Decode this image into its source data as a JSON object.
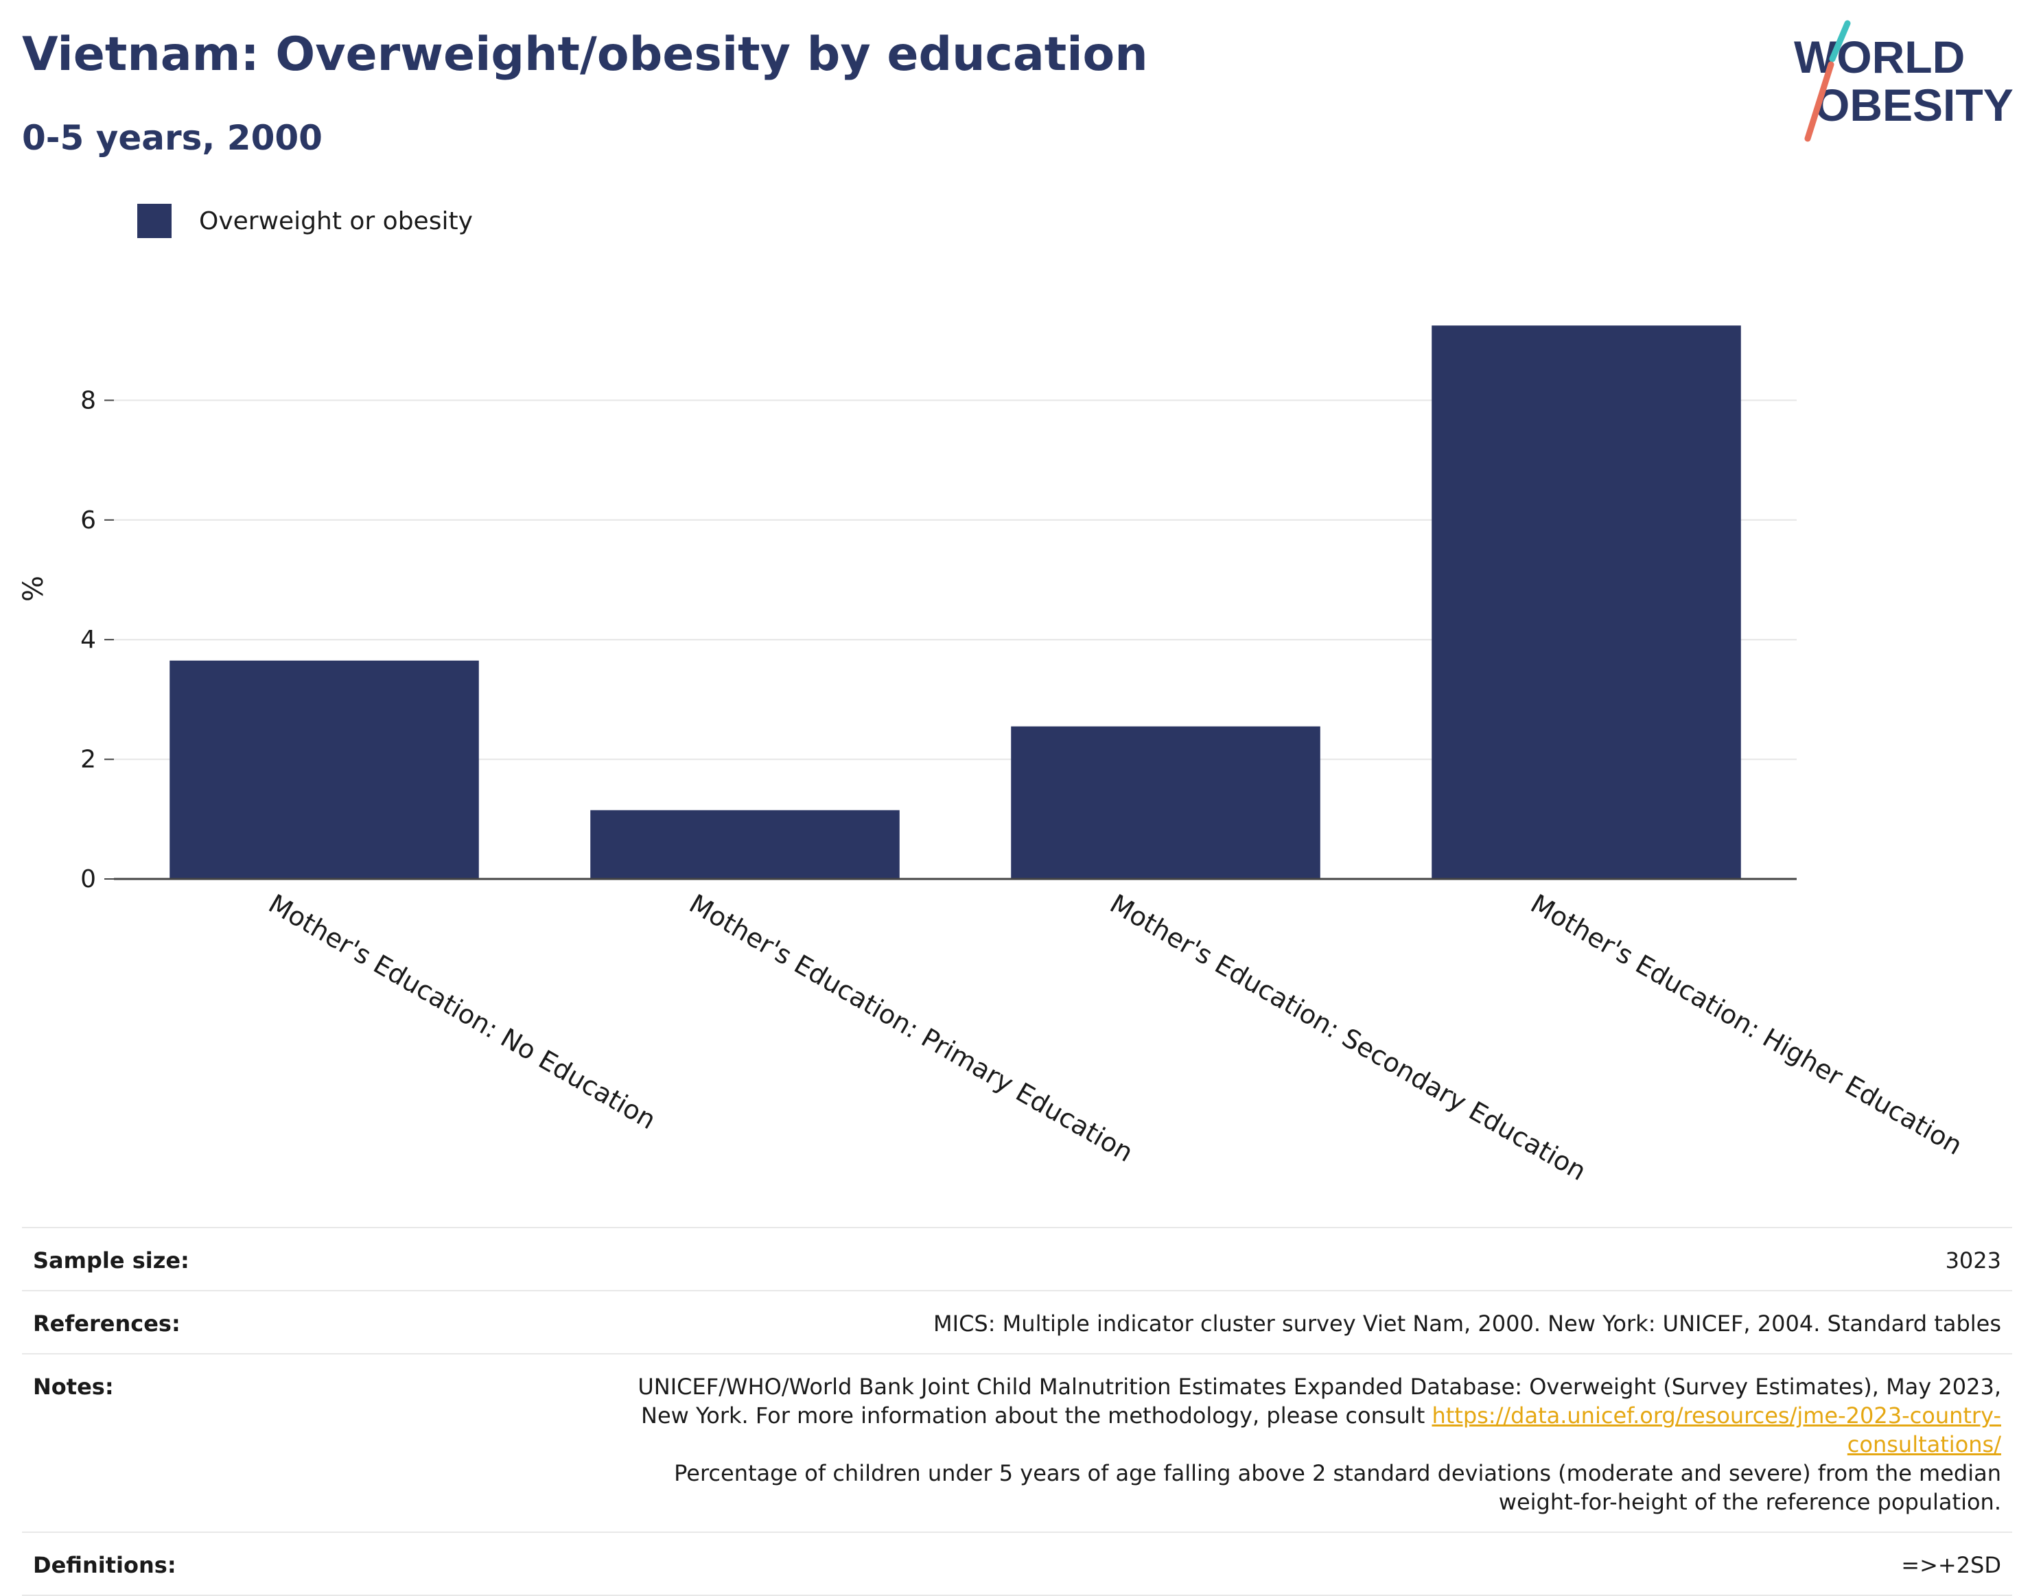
{
  "header": {
    "title": "Vietnam: Overweight/obesity by education",
    "subtitle": "0-5 years, 2000"
  },
  "logo": {
    "line1": "WORLD",
    "line2": "OBESITY",
    "colors": {
      "text": "#2a3764",
      "teal": "#3fc1c0",
      "coral": "#e8705a"
    }
  },
  "legend": {
    "items": [
      {
        "label": "Overweight or obesity",
        "color": "#2b3663"
      }
    ]
  },
  "chart_data": {
    "type": "bar",
    "categories": [
      "Mother's Education: No Education",
      "Mother's Education: Primary Education",
      "Mother's Education: Secondary Education",
      "Mother's Education: Higher Education"
    ],
    "series": [
      {
        "name": "Overweight or obesity",
        "values": [
          3.65,
          1.15,
          2.55,
          9.25
        ],
        "color": "#2b3663"
      }
    ],
    "ylabel": "%",
    "xlabel": "",
    "ylim": [
      0,
      10
    ],
    "yticks": [
      0,
      2,
      4,
      6,
      8
    ],
    "grid": true,
    "legend_position": "top-left"
  },
  "meta": {
    "sample_size_label": "Sample size:",
    "sample_size": "3023",
    "references_label": "References:",
    "references": "MICS: Multiple indicator cluster survey Viet Nam, 2000. New York: UNICEF, 2004. Standard tables",
    "notes_label": "Notes:",
    "notes_text_1": "UNICEF/WHO/World Bank Joint Child Malnutrition Estimates Expanded Database: Overweight (Survey Estimates), May 2023, New York. For more information about the methodology, please consult ",
    "notes_link": "https://data.unicef.org/resources/jme-2023-country-consultations/",
    "notes_text_2": "Percentage of children under 5 years of age falling above 2 standard deviations (moderate and severe) from the median weight-for-height of the reference population.",
    "definitions_label": "Definitions:",
    "definitions": "=>+2SD"
  }
}
